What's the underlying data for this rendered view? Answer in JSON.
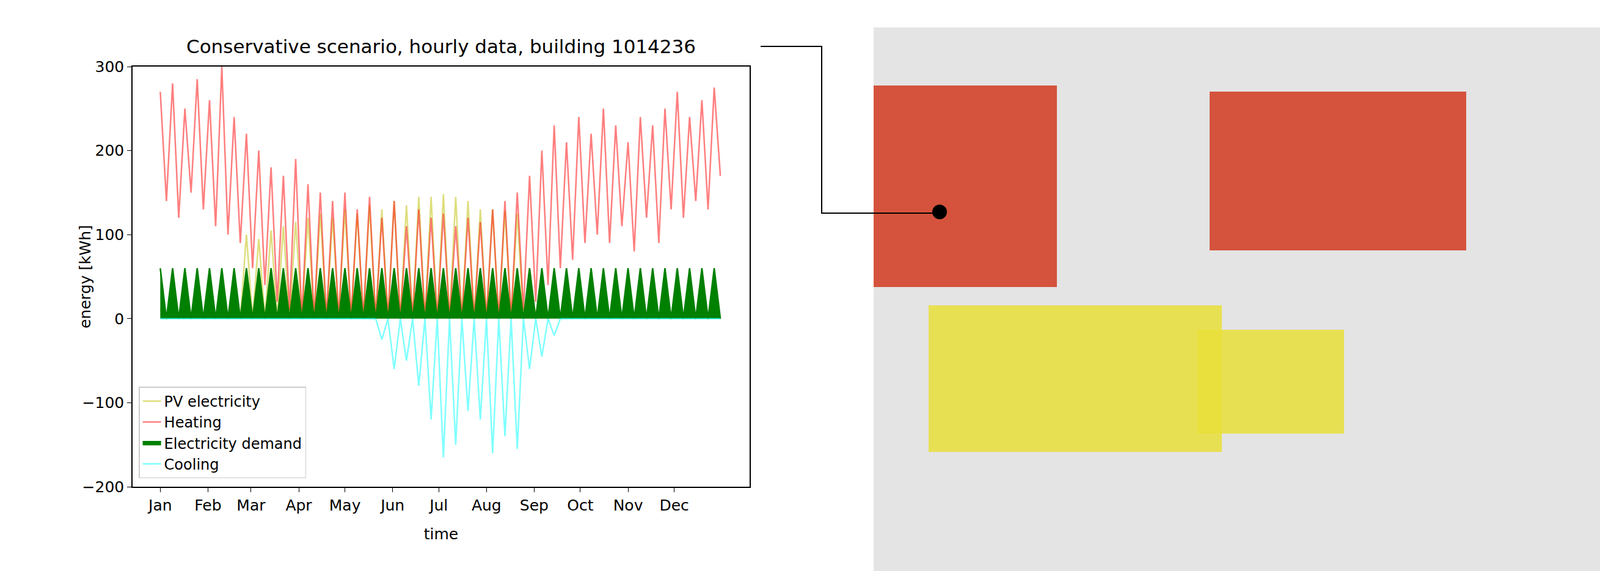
{
  "chart_data": {
    "type": "line",
    "title": "Conservative scenario, hourly data, building 1014236",
    "x_label": "time",
    "y_label": "energy [kWh]",
    "xlim": [
      -18,
      383
    ],
    "xticks": [
      {
        "value": 0,
        "label": "Jan"
      },
      {
        "value": 31,
        "label": "Feb"
      },
      {
        "value": 59,
        "label": "Mar"
      },
      {
        "value": 90,
        "label": "Apr"
      },
      {
        "value": 120,
        "label": "May"
      },
      {
        "value": 151,
        "label": "Jun"
      },
      {
        "value": 181,
        "label": "Jul"
      },
      {
        "value": 212,
        "label": "Aug"
      },
      {
        "value": 243,
        "label": "Sep"
      },
      {
        "value": 273,
        "label": "Oct"
      },
      {
        "value": 304,
        "label": "Nov"
      },
      {
        "value": 334,
        "label": "Dec"
      }
    ],
    "ylim": [
      -200,
      300
    ],
    "yticks": [
      {
        "value": -200,
        "label": "−200"
      },
      {
        "value": -100,
        "label": "−100"
      },
      0,
      100,
      200,
      300
    ],
    "grid": false,
    "legend": "lower left",
    "x": [
      0,
      4,
      8,
      12,
      16,
      20,
      24,
      28,
      32,
      36,
      40,
      44,
      48,
      52,
      56,
      60,
      64,
      68,
      72,
      76,
      80,
      84,
      88,
      92,
      96,
      100,
      104,
      108,
      112,
      116,
      120,
      124,
      128,
      132,
      136,
      140,
      144,
      148,
      152,
      156,
      160,
      164,
      168,
      172,
      176,
      180,
      184,
      188,
      192,
      196,
      200,
      204,
      208,
      212,
      216,
      220,
      224,
      228,
      232,
      236,
      240,
      244,
      248,
      252,
      256,
      260,
      264,
      268,
      272,
      276,
      280,
      284,
      288,
      292,
      296,
      300,
      304,
      308,
      312,
      316,
      320,
      324,
      328,
      332,
      336,
      340,
      344,
      348,
      352,
      356,
      360,
      364
    ],
    "series": [
      {
        "name": "PV electricity",
        "color": "#bfbf00",
        "type": "line",
        "values": [
          10,
          0,
          15,
          0,
          20,
          0,
          25,
          0,
          30,
          0,
          40,
          0,
          50,
          0,
          100,
          0,
          95,
          0,
          105,
          0,
          110,
          0,
          115,
          0,
          120,
          0,
          125,
          0,
          120,
          0,
          130,
          0,
          125,
          0,
          135,
          0,
          130,
          0,
          140,
          0,
          135,
          0,
          145,
          0,
          145,
          0,
          148,
          0,
          145,
          0,
          140,
          0,
          130,
          0,
          130,
          0,
          128,
          0,
          125,
          0,
          60,
          0,
          55,
          0,
          50,
          0,
          45,
          0,
          40,
          0,
          30,
          0,
          25,
          0,
          20,
          0,
          15,
          0,
          12,
          0,
          10,
          0,
          8,
          0,
          8,
          0,
          8,
          0,
          10,
          0,
          10,
          0
        ]
      },
      {
        "name": "Heating",
        "color": "#ff0000",
        "type": "line",
        "values": [
          270,
          140,
          280,
          120,
          250,
          150,
          285,
          130,
          260,
          110,
          300,
          100,
          240,
          90,
          220,
          60,
          200,
          40,
          180,
          20,
          170,
          10,
          190,
          0,
          160,
          0,
          150,
          0,
          140,
          0,
          150,
          0,
          130,
          0,
          145,
          0,
          120,
          0,
          140,
          0,
          110,
          0,
          130,
          0,
          120,
          0,
          125,
          0,
          110,
          0,
          120,
          0,
          115,
          0,
          130,
          0,
          140,
          0,
          150,
          10,
          170,
          20,
          200,
          40,
          230,
          60,
          210,
          70,
          240,
          90,
          220,
          100,
          250,
          90,
          230,
          110,
          210,
          80,
          240,
          120,
          230,
          90,
          250,
          130,
          270,
          120,
          240,
          140,
          260,
          130,
          275,
          170
        ]
      },
      {
        "name": "Electricity demand",
        "color": "#008000",
        "type": "area",
        "values": [
          60,
          0,
          60,
          0,
          60,
          0,
          60,
          0,
          60,
          0,
          60,
          0,
          60,
          0,
          60,
          0,
          60,
          0,
          60,
          0,
          60,
          0,
          60,
          0,
          60,
          0,
          60,
          0,
          60,
          0,
          60,
          0,
          60,
          0,
          60,
          0,
          60,
          0,
          60,
          0,
          60,
          0,
          60,
          0,
          60,
          0,
          60,
          0,
          60,
          0,
          60,
          0,
          60,
          0,
          60,
          0,
          60,
          0,
          60,
          0,
          60,
          0,
          60,
          0,
          60,
          0,
          60,
          0,
          60,
          0,
          60,
          0,
          60,
          0,
          60,
          0,
          60,
          0,
          60,
          0,
          60,
          0,
          60,
          0,
          60,
          0,
          60,
          0,
          60,
          0,
          60,
          0
        ]
      },
      {
        "name": "Cooling",
        "color": "#00ffff",
        "type": "line",
        "values": [
          0,
          0,
          0,
          0,
          0,
          0,
          0,
          0,
          0,
          0,
          0,
          0,
          0,
          0,
          0,
          0,
          0,
          0,
          0,
          0,
          0,
          0,
          0,
          0,
          0,
          0,
          0,
          0,
          0,
          0,
          0,
          0,
          0,
          0,
          0,
          0,
          -25,
          0,
          -60,
          0,
          -50,
          0,
          -80,
          0,
          -120,
          0,
          -165,
          0,
          -150,
          0,
          -110,
          0,
          -120,
          0,
          -160,
          0,
          -140,
          0,
          -155,
          0,
          -60,
          0,
          -45,
          0,
          -20,
          0,
          0,
          0,
          0,
          0,
          0,
          0,
          0,
          0,
          0,
          0,
          0,
          0,
          0,
          0,
          0,
          0,
          0,
          0,
          0,
          0,
          0,
          0,
          0,
          0,
          0,
          0
        ]
      }
    ]
  }
}
